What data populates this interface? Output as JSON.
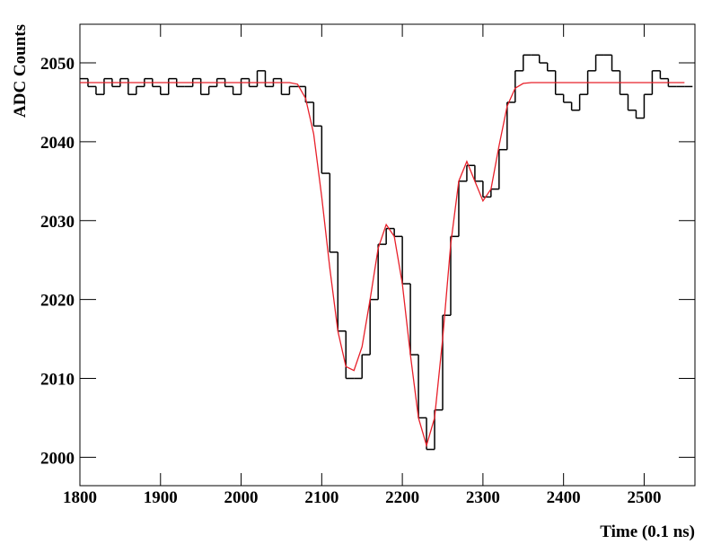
{
  "chart_data": {
    "type": "histogram",
    "xlabel": "Time (0.1 ns)",
    "ylabel": "ADC Counts",
    "xlim": [
      1800,
      2563
    ],
    "ylim": [
      1996.4,
      2054.9
    ],
    "xticks": [
      1800,
      1900,
      2000,
      2100,
      2200,
      2300,
      2400,
      2500
    ],
    "yticks": [
      2000,
      2010,
      2020,
      2030,
      2040,
      2050
    ],
    "color": "#000000",
    "bins": [
      1800,
      1810,
      1820,
      1830,
      1840,
      1850,
      1860,
      1870,
      1880,
      1890,
      1900,
      1910,
      1920,
      1930,
      1940,
      1950,
      1960,
      1970,
      1980,
      1990,
      2000,
      2010,
      2020,
      2030,
      2040,
      2050,
      2060,
      2070,
      2080,
      2090,
      2100,
      2110,
      2120,
      2130,
      2140,
      2150,
      2160,
      2170,
      2180,
      2190,
      2200,
      2210,
      2220,
      2230,
      2240,
      2250,
      2260,
      2270,
      2280,
      2290,
      2300,
      2310,
      2320,
      2330,
      2340,
      2350,
      2360,
      2370,
      2380,
      2390,
      2400,
      2410,
      2420,
      2430,
      2440,
      2450,
      2460,
      2470,
      2480,
      2490,
      2500,
      2510,
      2520,
      2530,
      2540,
      2550,
      2560
    ],
    "values": [
      2048,
      2047,
      2046,
      2048,
      2047,
      2048,
      2046,
      2047,
      2048,
      2047,
      2046,
      2048,
      2047,
      2047,
      2048,
      2046,
      2047,
      2048,
      2047,
      2046,
      2048,
      2047,
      2049,
      2047,
      2048,
      2046,
      2047,
      2047,
      2045,
      2042,
      2036,
      2026,
      2016,
      2010,
      2010,
      2013,
      2020,
      2027,
      2029,
      2028,
      2022,
      2013,
      2005,
      2001,
      2006,
      2018,
      2028,
      2035,
      2037,
      2035,
      2033,
      2034,
      2039,
      2045,
      2049,
      2051,
      2051,
      2050,
      2049,
      2046,
      2045,
      2044,
      2046,
      2049,
      2051,
      2051,
      2049,
      2046,
      2044,
      2043,
      2046,
      2049,
      2048,
      2047,
      2047,
      2047
    ],
    "fit": {
      "color": "#e8202a",
      "x": [
        1800,
        1810,
        1820,
        1830,
        1840,
        1850,
        1860,
        1870,
        1880,
        1890,
        1900,
        1910,
        1920,
        1930,
        1940,
        1950,
        1960,
        1970,
        1980,
        1990,
        2000,
        2010,
        2020,
        2030,
        2040,
        2050,
        2060,
        2070,
        2080,
        2090,
        2100,
        2110,
        2120,
        2130,
        2140,
        2150,
        2160,
        2170,
        2180,
        2190,
        2200,
        2210,
        2220,
        2230,
        2240,
        2250,
        2260,
        2270,
        2280,
        2290,
        2300,
        2310,
        2320,
        2330,
        2340,
        2350,
        2360,
        2370,
        2380,
        2390,
        2400,
        2410,
        2420,
        2430,
        2440,
        2450,
        2460,
        2470,
        2480,
        2490,
        2500,
        2510,
        2520,
        2530,
        2540,
        2550
      ],
      "values": [
        2047.5,
        2047.5,
        2047.5,
        2047.5,
        2047.5,
        2047.5,
        2047.5,
        2047.5,
        2047.5,
        2047.5,
        2047.5,
        2047.5,
        2047.5,
        2047.5,
        2047.5,
        2047.5,
        2047.5,
        2047.5,
        2047.5,
        2047.5,
        2047.5,
        2047.5,
        2047.5,
        2047.5,
        2047.5,
        2047.5,
        2047.5,
        2047.3,
        2045.5,
        2041,
        2033,
        2024,
        2016,
        2011.5,
        2011,
        2014,
        2020,
        2026.5,
        2029.5,
        2028,
        2022,
        2013,
        2005,
        2001.5,
        2005,
        2015,
        2027,
        2035,
        2037.5,
        2035,
        2032.5,
        2034,
        2039.5,
        2044.5,
        2046.8,
        2047.4,
        2047.5,
        2047.5,
        2047.5,
        2047.5,
        2047.5,
        2047.5,
        2047.5,
        2047.5,
        2047.5,
        2047.5,
        2047.5,
        2047.5,
        2047.5,
        2047.5,
        2047.5,
        2047.5,
        2047.5,
        2047.5,
        2047.5,
        2047.5
      ]
    }
  }
}
